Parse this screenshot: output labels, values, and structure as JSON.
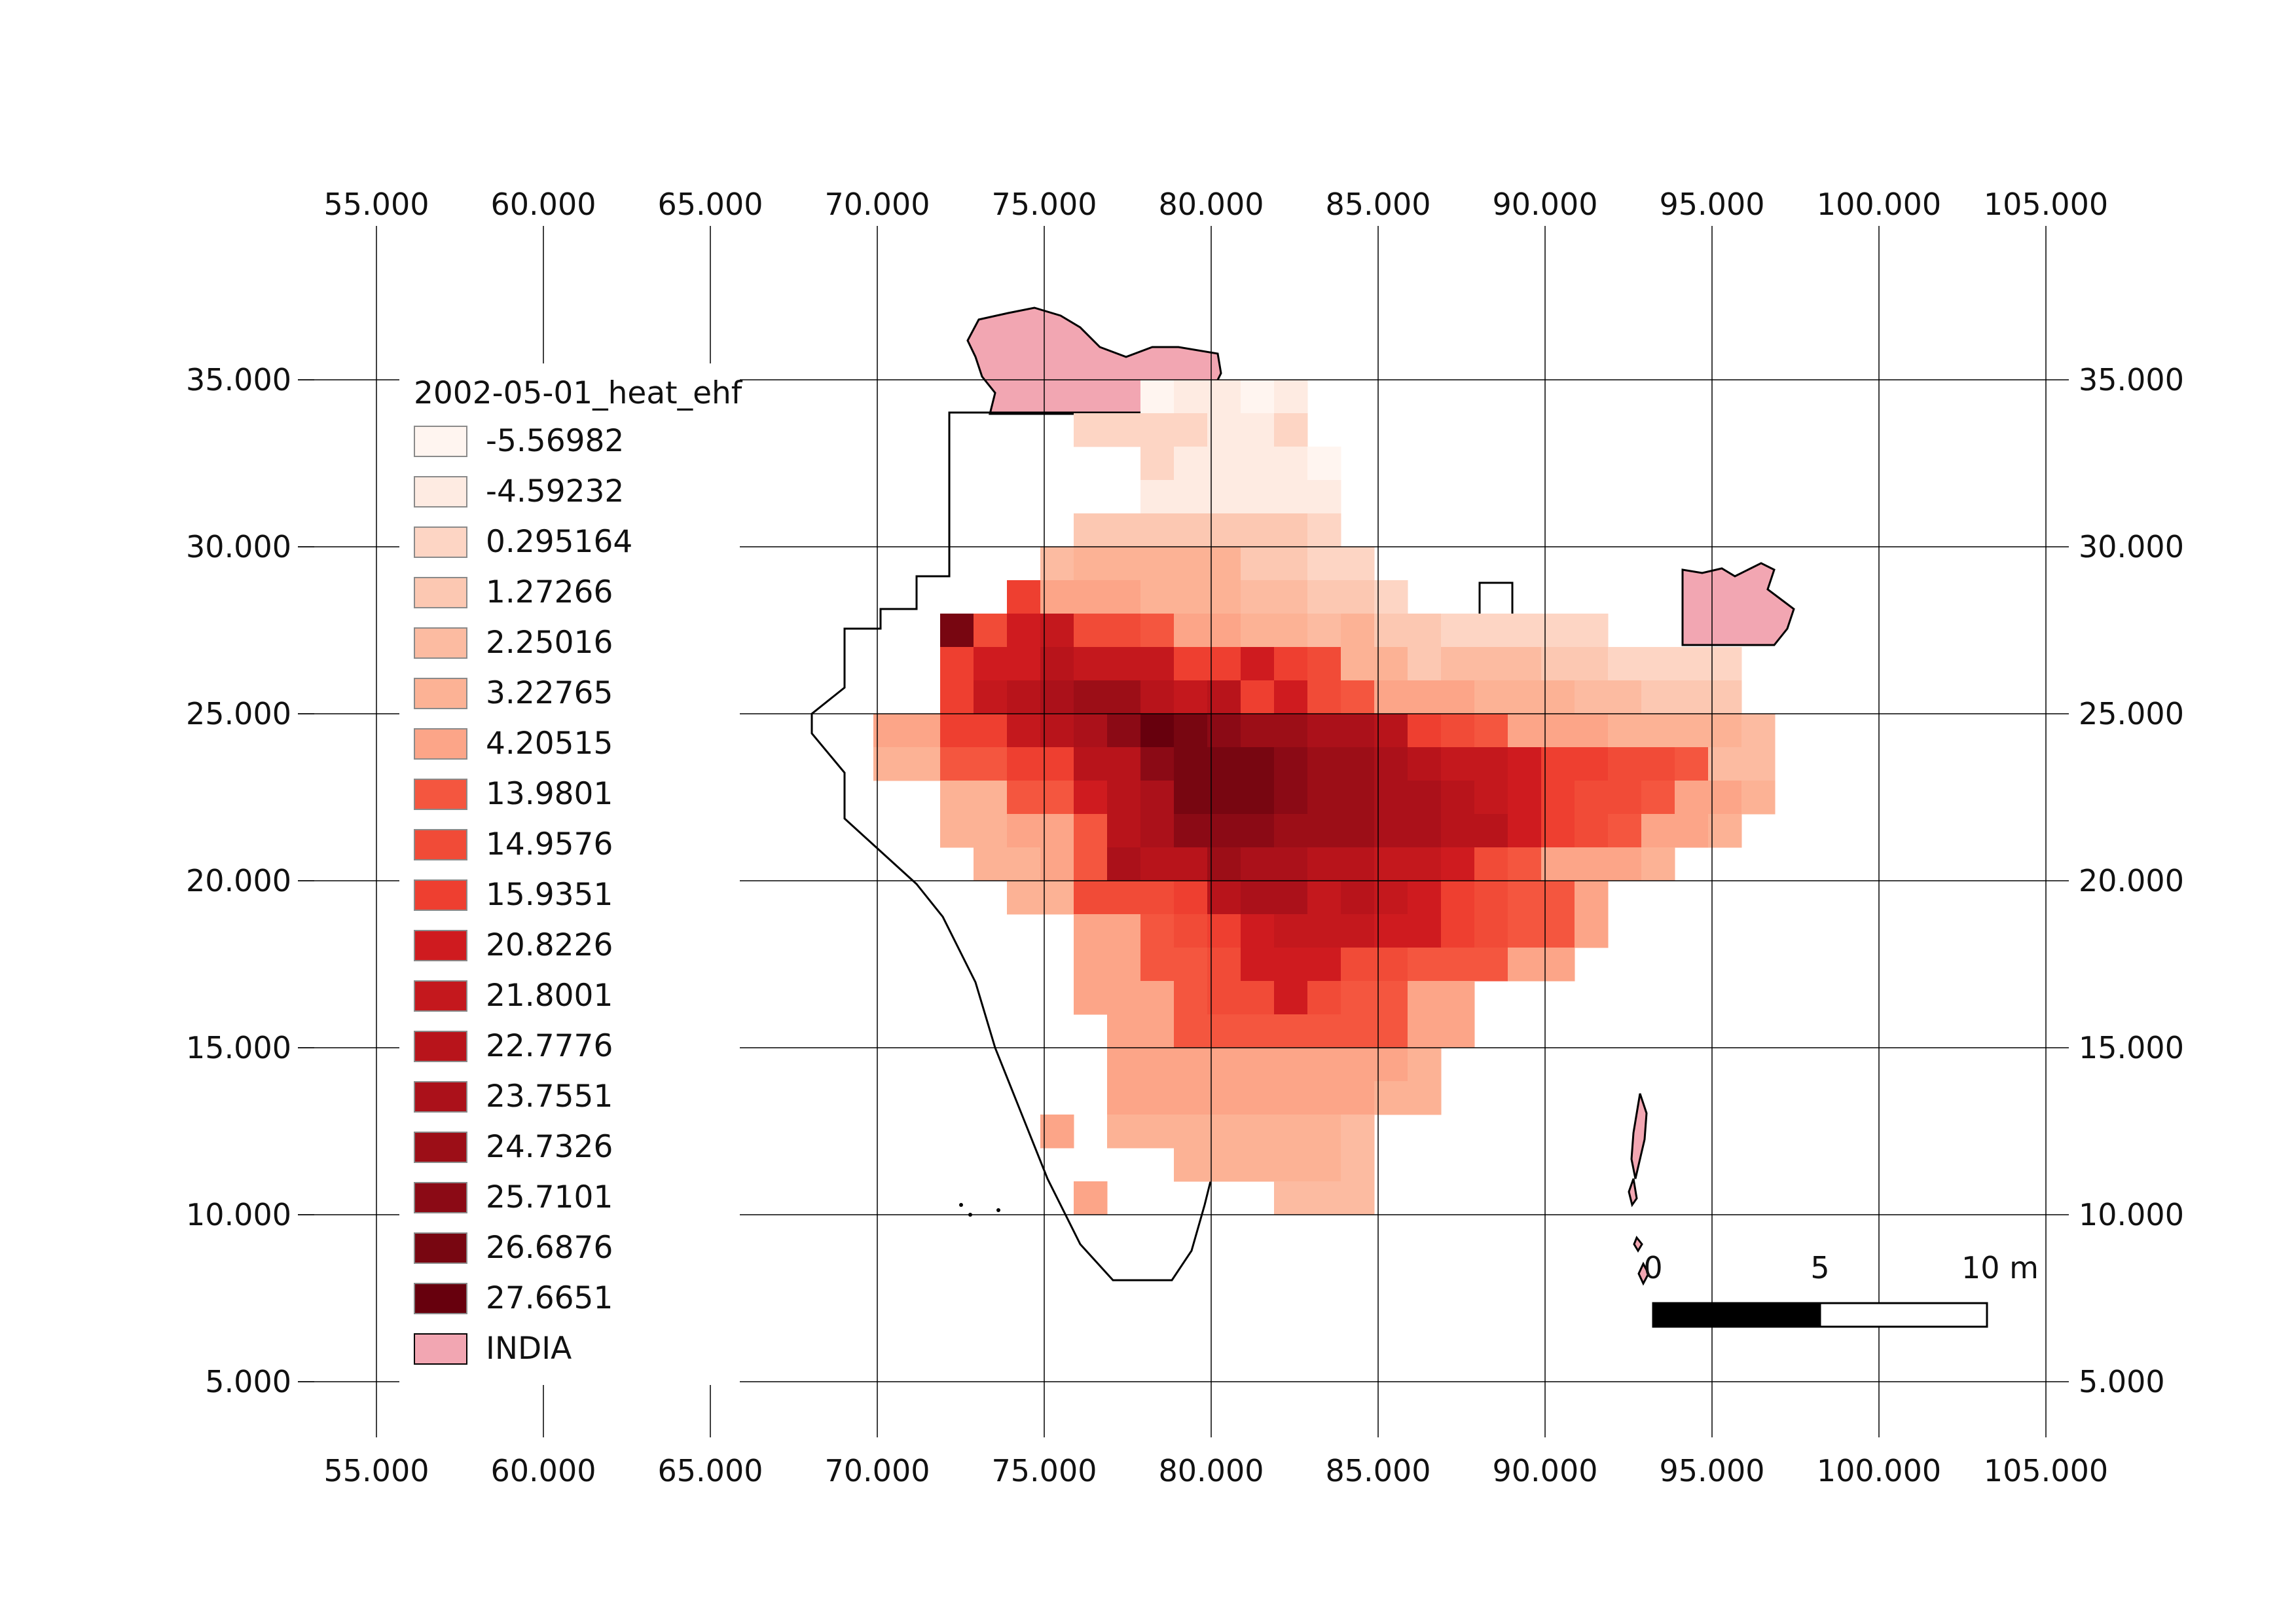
{
  "legend": {
    "title": "2002-05-01_heat_ehf",
    "entries": [
      {
        "label": "-5.56982",
        "color": "#fff5f0"
      },
      {
        "label": "-4.59232",
        "color": "#feebe2"
      },
      {
        "label": "0.295164",
        "color": "#fdd5c4"
      },
      {
        "label": "1.27266",
        "color": "#fcc8b2"
      },
      {
        "label": "2.25016",
        "color": "#fcbba1"
      },
      {
        "label": "3.22765",
        "color": "#fcb295"
      },
      {
        "label": "4.20515",
        "color": "#fca588"
      },
      {
        "label": "13.9801",
        "color": "#f4563f"
      },
      {
        "label": "14.9576",
        "color": "#f14b37"
      },
      {
        "label": "15.9351",
        "color": "#ee3f30"
      },
      {
        "label": "20.8226",
        "color": "#cf1b1f"
      },
      {
        "label": "21.8001",
        "color": "#c4181d"
      },
      {
        "label": "22.7776",
        "color": "#b8141b"
      },
      {
        "label": "23.7551",
        "color": "#ab111a"
      },
      {
        "label": "24.7326",
        "color": "#9c0e17"
      },
      {
        "label": "25.7101",
        "color": "#8b0a15"
      },
      {
        "label": "26.6876",
        "color": "#780611"
      },
      {
        "label": "27.6651",
        "color": "#67000d"
      },
      {
        "label": "INDIA",
        "color": "#f2a6b2"
      }
    ]
  },
  "grid": {
    "longitudes": [
      "55.000",
      "60.000",
      "65.000",
      "70.000",
      "75.000",
      "80.000",
      "85.000",
      "90.000",
      "95.000",
      "100.000",
      "105.000"
    ],
    "latitudes": [
      "35.000",
      "30.000",
      "25.000",
      "20.000",
      "15.000",
      "10.000",
      "5.000"
    ]
  },
  "scalebar": {
    "labels": [
      "0",
      "5",
      "10 m"
    ],
    "colors": {
      "filled": "#000000",
      "empty": "#ffffff"
    }
  },
  "colors": {
    "country_fill": "#f2a6b2",
    "outline": "#000000",
    "grid_line": "#000000"
  }
}
